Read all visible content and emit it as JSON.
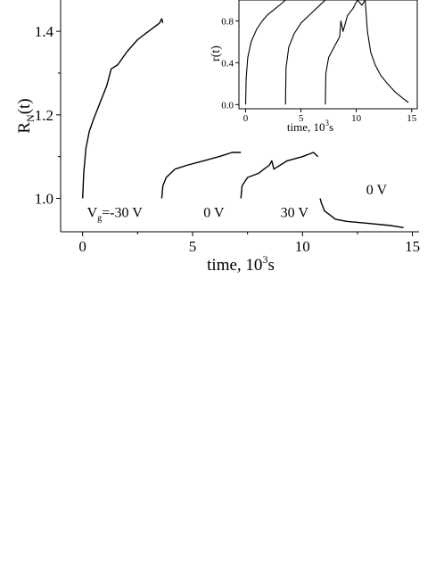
{
  "chart_data": [
    {
      "type": "line",
      "xlabel": "time, 10",
      "xlabel_sup": "3",
      "xlabel_unit": "s",
      "ylabel": "R",
      "ylabel_sub": "N",
      "ylabel_tail": "(t)",
      "xlim": [
        -1,
        15.3
      ],
      "ylim": [
        0.92,
        1.475
      ],
      "xticks": [
        0,
        5,
        10,
        15
      ],
      "yticks": [
        1.0,
        1.2,
        1.4
      ],
      "ytick_labels": [
        "1.0",
        "1.2",
        "1.4"
      ],
      "grid": false,
      "annotations": [
        {
          "label": "V_g=-30 V",
          "base": "V",
          "sub": "g",
          "rest": "=-30 V",
          "x": 0.2,
          "y": 0.955
        },
        {
          "label": "0 V",
          "x": 5.5,
          "y": 0.955
        },
        {
          "label": "30 V",
          "x": 9.0,
          "y": 0.955
        },
        {
          "label": "0 V",
          "x": 12.9,
          "y": 1.01
        }
      ],
      "series": [
        {
          "values": [
            [
              0,
              1.0
            ],
            [
              0.05,
              1.06
            ],
            [
              0.15,
              1.12
            ],
            [
              0.3,
              1.16
            ],
            [
              0.5,
              1.19
            ],
            [
              0.8,
              1.23
            ],
            [
              1.1,
              1.27
            ],
            [
              1.3,
              1.31
            ],
            [
              1.6,
              1.32
            ],
            [
              2.0,
              1.35
            ],
            [
              2.5,
              1.38
            ],
            [
              3.0,
              1.4
            ],
            [
              3.5,
              1.42
            ],
            [
              3.6,
              1.43
            ],
            [
              3.65,
              1.42
            ]
          ]
        },
        {
          "values": [
            [
              3.6,
              1.0
            ],
            [
              3.65,
              1.03
            ],
            [
              3.8,
              1.05
            ],
            [
              4.2,
              1.07
            ],
            [
              4.8,
              1.08
            ],
            [
              5.5,
              1.09
            ],
            [
              6.2,
              1.1
            ],
            [
              6.8,
              1.11
            ],
            [
              7.2,
              1.11
            ]
          ]
        },
        {
          "values": [
            [
              7.2,
              1.0
            ],
            [
              7.25,
              1.03
            ],
            [
              7.5,
              1.05
            ],
            [
              8.0,
              1.06
            ],
            [
              8.5,
              1.08
            ],
            [
              8.6,
              1.09
            ],
            [
              8.7,
              1.07
            ],
            [
              9.3,
              1.09
            ],
            [
              10.0,
              1.1
            ],
            [
              10.5,
              1.11
            ],
            [
              10.7,
              1.1
            ]
          ]
        },
        {
          "values": [
            [
              10.8,
              1.0
            ],
            [
              10.85,
              0.99
            ],
            [
              11.0,
              0.97
            ],
            [
              11.5,
              0.95
            ],
            [
              12.0,
              0.945
            ],
            [
              13.0,
              0.94
            ],
            [
              14.0,
              0.935
            ],
            [
              14.6,
              0.93
            ]
          ]
        }
      ]
    },
    {
      "type": "line",
      "inset": true,
      "xlabel": "time, 10",
      "xlabel_sup": "3",
      "xlabel_unit": "s",
      "ylabel": "r(t)",
      "xlim": [
        -0.6,
        15.5
      ],
      "ylim": [
        -0.04,
        1.0
      ],
      "xticks": [
        0,
        5,
        10,
        15
      ],
      "yticks": [
        0.0,
        0.4,
        0.8
      ],
      "ytick_labels": [
        "0.0",
        "0.4",
        "0.8"
      ],
      "grid": false,
      "series": [
        {
          "values": [
            [
              0,
              0.0
            ],
            [
              0.05,
              0.25
            ],
            [
              0.2,
              0.45
            ],
            [
              0.5,
              0.6
            ],
            [
              1.0,
              0.72
            ],
            [
              1.5,
              0.8
            ],
            [
              2.0,
              0.86
            ],
            [
              2.7,
              0.92
            ],
            [
              3.3,
              0.97
            ],
            [
              3.6,
              1.0
            ]
          ]
        },
        {
          "values": [
            [
              3.6,
              0.0
            ],
            [
              3.65,
              0.35
            ],
            [
              3.9,
              0.55
            ],
            [
              4.4,
              0.68
            ],
            [
              5.0,
              0.78
            ],
            [
              5.8,
              0.86
            ],
            [
              6.5,
              0.93
            ],
            [
              7.0,
              0.98
            ],
            [
              7.2,
              1.0
            ]
          ]
        },
        {
          "values": [
            [
              7.2,
              0.0
            ],
            [
              7.25,
              0.3
            ],
            [
              7.5,
              0.45
            ],
            [
              8.0,
              0.55
            ],
            [
              8.5,
              0.65
            ],
            [
              8.6,
              0.8
            ],
            [
              8.8,
              0.7
            ],
            [
              9.2,
              0.85
            ],
            [
              9.7,
              0.92
            ],
            [
              10.1,
              1.0
            ],
            [
              10.5,
              0.95
            ],
            [
              10.8,
              1.0
            ]
          ]
        },
        {
          "values": [
            [
              10.8,
              1.0
            ],
            [
              11.0,
              0.7
            ],
            [
              11.3,
              0.5
            ],
            [
              11.7,
              0.38
            ],
            [
              12.2,
              0.28
            ],
            [
              12.8,
              0.2
            ],
            [
              13.5,
              0.12
            ],
            [
              14.2,
              0.06
            ],
            [
              14.7,
              0.02
            ]
          ]
        }
      ]
    }
  ]
}
